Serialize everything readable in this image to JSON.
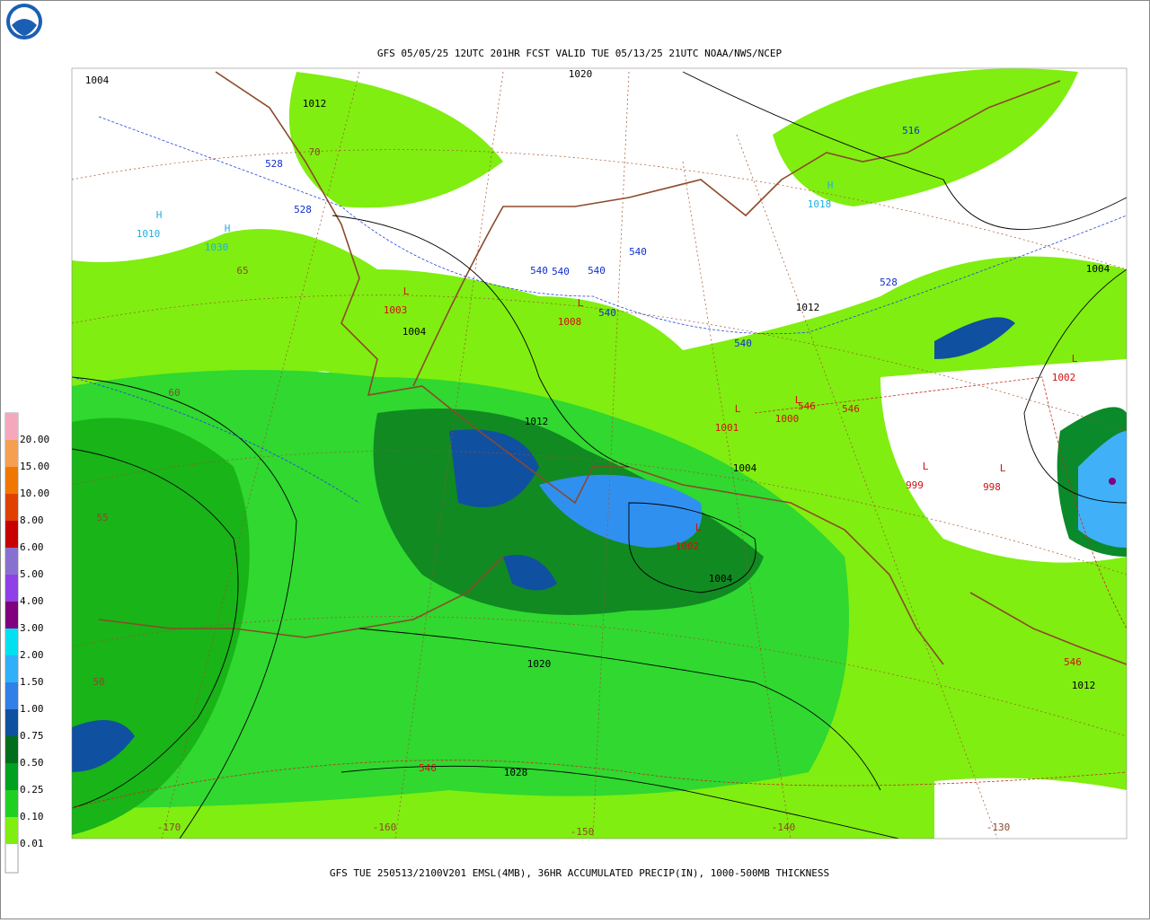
{
  "header": {
    "title": "GFS 05/05/25 12UTC 201HR FCST VALID TUE 05/13/25 21UTC NOAA/NWS/NCEP"
  },
  "footer": {
    "caption": "GFS TUE 250513/2100V201 EMSL(4MB), 36HR ACCUMULATED PRECIP(IN), 1000-500MB THICKNESS"
  },
  "legend": {
    "items": [
      {
        "label": "20.00",
        "color": "#f5a8bc"
      },
      {
        "label": "15.00",
        "color": "#f5a050"
      },
      {
        "label": "10.00",
        "color": "#f07800"
      },
      {
        "label": "8.00",
        "color": "#e04000"
      },
      {
        "label": "6.00",
        "color": "#c80000"
      },
      {
        "label": "5.00",
        "color": "#8870d0"
      },
      {
        "label": "4.00",
        "color": "#9040e8"
      },
      {
        "label": "3.00",
        "color": "#800080"
      },
      {
        "label": "2.00",
        "color": "#00e0f0"
      },
      {
        "label": "1.50",
        "color": "#30b0f8"
      },
      {
        "label": "1.00",
        "color": "#3080e8"
      },
      {
        "label": "0.75",
        "color": "#1050a0"
      },
      {
        "label": "0.50",
        "color": "#006e1a"
      },
      {
        "label": "0.25",
        "color": "#00a020"
      },
      {
        "label": "0.10",
        "color": "#20d020"
      },
      {
        "label": "0.01",
        "color": "#80ee10"
      }
    ]
  },
  "map": {
    "isobar_labels": [
      "1004",
      "1012",
      "1020",
      "1004",
      "1012",
      "1004",
      "1004",
      "1020",
      "1028",
      "1012",
      "1004",
      "1012"
    ],
    "thickness_labels_blue": [
      "528",
      "528",
      "540",
      "540",
      "540",
      "540",
      "540",
      "540",
      "528",
      "516"
    ],
    "thickness_labels_red": [
      "546",
      "546",
      "546",
      "546"
    ],
    "highs": [
      {
        "letter": "H",
        "pressure": "1010"
      },
      {
        "letter": "H",
        "pressure": "1030"
      },
      {
        "letter": "H",
        "pressure": "1018"
      }
    ],
    "lows": [
      {
        "letter": "L",
        "pressure": "1003"
      },
      {
        "letter": "L",
        "pressure": "1008"
      },
      {
        "letter": "L",
        "pressure": "1001"
      },
      {
        "letter": "L",
        "pressure": "1000"
      },
      {
        "letter": "L",
        "pressure": "999"
      },
      {
        "letter": "L",
        "pressure": "998"
      },
      {
        "letter": "L",
        "pressure": "1002"
      },
      {
        "letter": "L",
        "pressure": "1002"
      }
    ],
    "graticule_labels": [
      "70",
      "65",
      "60",
      "55",
      "50",
      "-170",
      "-160",
      "-150",
      "-140",
      "-130"
    ]
  }
}
